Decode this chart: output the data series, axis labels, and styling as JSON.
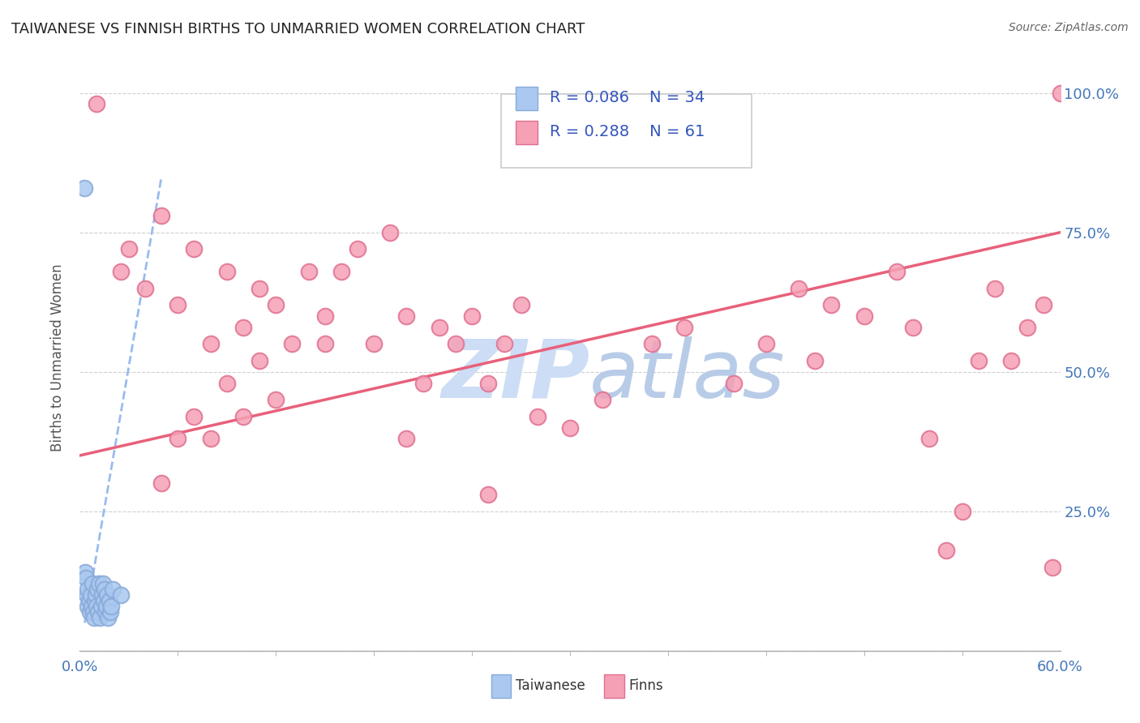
{
  "title": "TAIWANESE VS FINNISH BIRTHS TO UNMARRIED WOMEN CORRELATION CHART",
  "source": "Source: ZipAtlas.com",
  "xmin": 0.0,
  "xmax": 60.0,
  "ymin": 0.0,
  "ymax": 105.0,
  "ylabel": "Births to Unmarried Women",
  "legend_r1": "R = 0.086",
  "legend_n1": "N = 34",
  "legend_r2": "R = 0.288",
  "legend_n2": "N = 61",
  "taiwanese_color": "#aac8f0",
  "finns_color": "#f5a0b5",
  "taiwanese_edge": "#88aad8",
  "finns_edge": "#e07090",
  "trendline_taiwan_color": "#99bbee",
  "trendline_finns_color": "#e8607a",
  "background_color": "#ffffff",
  "grid_color": "#d0d0d0",
  "title_color": "#222222",
  "watermark_zip_color": "#ccddf5",
  "watermark_atlas_color": "#b8cce8",
  "taiwanese_x": [
    0.3,
    0.35,
    0.4,
    0.45,
    0.5,
    0.5,
    0.55,
    0.6,
    0.65,
    0.7,
    0.75,
    0.8,
    0.85,
    0.9,
    0.95,
    1.0,
    1.05,
    1.1,
    1.15,
    1.2,
    1.3,
    1.35,
    1.4,
    1.45,
    1.5,
    1.55,
    1.6,
    1.65,
    1.7,
    1.8,
    1.85,
    1.9,
    2.0,
    2.5
  ],
  "taiwanese_y": [
    83,
    14,
    13,
    10,
    11,
    8,
    9,
    7,
    10,
    8,
    12,
    7,
    6,
    9,
    10,
    8,
    11,
    7,
    12,
    6,
    8,
    10,
    12,
    9,
    11,
    7,
    8,
    10,
    6,
    9,
    7,
    8,
    11,
    10
  ],
  "finns_x": [
    1.0,
    2.5,
    3.0,
    4.0,
    5.0,
    6.0,
    7.0,
    8.0,
    9.0,
    10.0,
    11.0,
    12.0,
    13.0,
    14.0,
    15.0,
    16.0,
    17.0,
    18.0,
    19.0,
    20.0,
    21.0,
    22.0,
    23.0,
    24.0,
    25.0,
    26.0,
    27.0,
    28.0,
    30.0,
    32.0,
    35.0,
    37.0,
    40.0,
    42.0,
    44.0,
    45.0,
    46.0,
    48.0,
    50.0,
    51.0,
    52.0,
    53.0,
    54.0,
    55.0,
    56.0,
    57.0,
    58.0,
    59.0,
    59.5,
    60.0,
    5.0,
    6.0,
    7.0,
    8.0,
    9.0,
    10.0,
    11.0,
    12.0,
    15.0,
    20.0,
    25.0
  ],
  "finns_y": [
    98,
    68,
    72,
    65,
    78,
    62,
    72,
    55,
    68,
    58,
    65,
    62,
    55,
    68,
    60,
    68,
    72,
    55,
    75,
    60,
    48,
    58,
    55,
    60,
    48,
    55,
    62,
    42,
    40,
    45,
    55,
    58,
    48,
    55,
    65,
    52,
    62,
    60,
    68,
    58,
    38,
    18,
    25,
    52,
    65,
    52,
    58,
    62,
    15,
    100,
    30,
    38,
    42,
    38,
    48,
    42,
    52,
    45,
    55,
    38,
    28
  ],
  "finns_trend_x0": 0.0,
  "finns_trend_y0": 35.0,
  "finns_trend_x1": 60.0,
  "finns_trend_y1": 75.0,
  "taiwan_trend_x0": 0.3,
  "taiwan_trend_y0": 5.0,
  "taiwan_trend_x1": 5.0,
  "taiwan_trend_y1": 85.0
}
